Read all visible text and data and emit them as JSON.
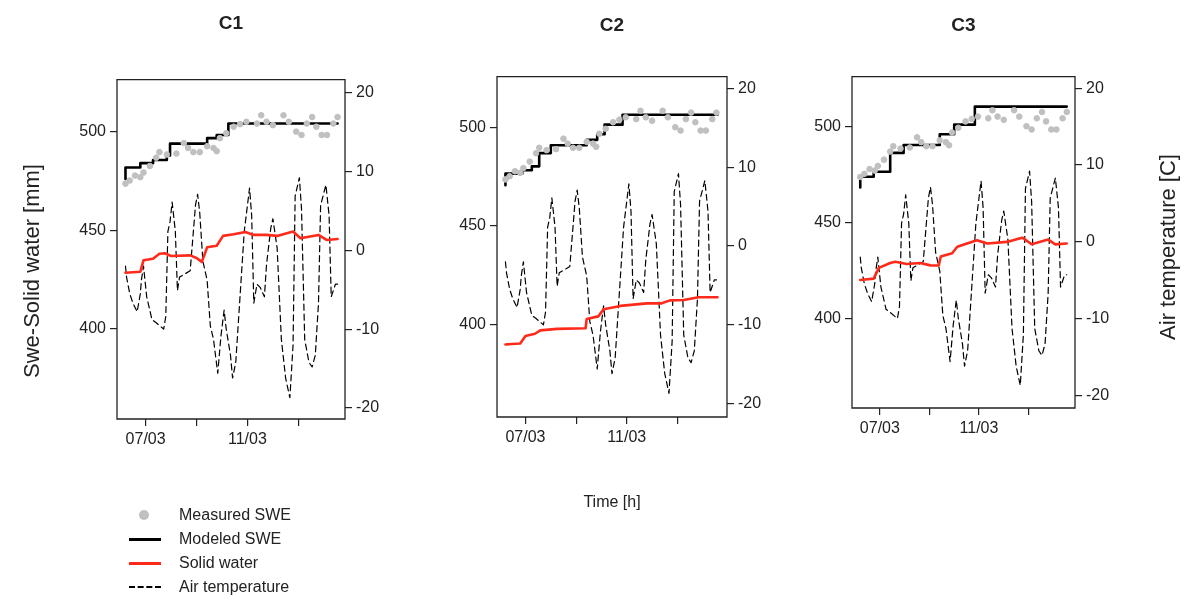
{
  "chart_data": [
    {
      "type": "line",
      "title": "C1",
      "ylabel": "Swe-Solid water [mm]",
      "legend": "bottom left",
      "xlim": [
        "--03-05T21:00",
        "--03-14T20:00"
      ],
      "xticks": [
        {
          "value": "--03-07",
          "label": "07/03"
        },
        {
          "value": "--03-09",
          "label": null
        },
        {
          "value": "--03-11",
          "label": "11/03"
        },
        {
          "value": "--03-13",
          "label": null
        }
      ],
      "ylim": [
        354.2,
        526.4
      ],
      "yticks": [
        400,
        450,
        500
      ],
      "y2lim": [
        -21.4,
        21.65
      ],
      "y2ticks": [
        -20,
        -10,
        0,
        10,
        20
      ],
      "series": [
        {
          "name": "Measured SWE",
          "type": "scatter",
          "marker": "circle",
          "color": "#c0c0c0",
          "x": [
            "--03-06T05:00",
            "--03-06T09:00",
            "--03-06T14:00",
            "--03-06T19:00",
            "--03-06T22:00",
            "--03-07T04:00",
            "--03-07T10:00",
            "--03-07T13:00",
            "--03-07T20:00",
            "--03-08T05:00",
            "--03-08T12:00",
            "--03-08T16:00",
            "--03-08T21:00",
            "--03-09T03:00",
            "--03-09T10:00",
            "--03-09T16:00",
            "--03-09T19:00",
            "--03-09T22:00",
            "--03-10T04:00",
            "--03-10T11:00",
            "--03-10T17:00",
            "--03-10T23:00",
            "--03-11T09:00",
            "--03-11T13:00",
            "--03-11T18:00",
            "--03-12T00:00",
            "--03-12T10:00",
            "--03-12T15:00",
            "--03-12T22:00",
            "--03-13T03:00",
            "--03-13T08:00",
            "--03-13T13:00",
            "--03-13T17:00",
            "--03-13T22:00",
            "--03-14T03:00",
            "--03-14T09:00",
            "--03-14T13:00"
          ],
          "values": [
            473.6,
            475.2,
            477.7,
            476.9,
            479.3,
            482.6,
            486.8,
            489.6,
            488.4,
            488.9,
            494.2,
            491.7,
            489.6,
            489.6,
            492.6,
            491.7,
            490.1,
            496.7,
            499.2,
            502.5,
            503.8,
            505.0,
            504.1,
            508.3,
            505.0,
            503.3,
            508.3,
            505.0,
            500.0,
            498.3,
            504.1,
            507.4,
            502.5,
            498.3,
            498.3,
            504.1,
            507.4
          ]
        },
        {
          "name": "Modeled SWE",
          "type": "step",
          "line_style": "solid",
          "color": "#000000",
          "x": [
            "--03-06T05:00",
            "--03-06T19:00",
            "--03-07T07:00",
            "--03-07T20:00",
            "--03-07T23:00",
            "--03-09T10:00",
            "--03-09T19:00",
            "--03-10T06:00",
            "--03-10T22:00",
            "--03-14T13:00"
          ],
          "values": [
            476.0,
            481.8,
            484.0,
            485.6,
            487.9,
            493.9,
            496.7,
            498.3,
            504.1,
            504.1
          ]
        },
        {
          "name": "Solid water",
          "type": "line",
          "line_style": "solid",
          "color": "#ff2a1a",
          "x": [
            "--03-06T05:00",
            "--03-06T19:00",
            "--03-06T22:00",
            "--03-07T07:00",
            "--03-07T13:00",
            "--03-07T18:00",
            "--03-08T00:00",
            "--03-08T18:00",
            "--03-09T00:00",
            "--03-09T05:00",
            "--03-09T10:00",
            "--03-09T19:00",
            "--03-10T01:00",
            "--03-10T11:00",
            "--03-10T22:00",
            "--03-11T06:00",
            "--03-11T18:00",
            "--03-12T04:00",
            "--03-12T19:00",
            "--03-13T02:00",
            "--03-13T19:00",
            "--03-14T03:00",
            "--03-14T13:00"
          ],
          "values": [
            428.4,
            428.9,
            434.7,
            435.5,
            438.0,
            438.3,
            436.9,
            437.2,
            435.9,
            433.9,
            441.3,
            442.1,
            447.1,
            447.9,
            449.1,
            447.6,
            447.6,
            447.1,
            449.3,
            445.9,
            447.6,
            445.0,
            445.5
          ]
        },
        {
          "name": "Air temperature",
          "type": "line",
          "line_style": "dashed",
          "axis": "y2",
          "color": "#000000",
          "x": [
            "--03-06T05:00",
            "--03-06T06:00",
            "--03-06T09:00",
            "--03-06T12:00",
            "--03-06T16:00",
            "--03-06T19:00",
            "--03-06T20:00",
            "--03-06T22:00",
            "--03-07T01:00",
            "--03-07T06:00",
            "--03-07T10:00",
            "--03-07T17:00",
            "--03-07T19:00",
            "--03-07T21:00",
            "--03-07T23:00",
            "--03-08T01:00",
            "--03-08T04:00",
            "--03-08T06:00",
            "--03-08T08:00",
            "--03-08T13:00",
            "--03-08T18:00",
            "--03-08T20:00",
            "--03-08T23:00",
            "--03-09T01:00",
            "--03-09T03:00",
            "--03-09T06:00",
            "--03-09T10:00",
            "--03-09T13:00",
            "--03-09T16:00",
            "--03-09T20:00",
            "--03-09T23:00",
            "--03-10T02:00",
            "--03-10T04:00",
            "--03-10T08:00",
            "--03-10T10:00",
            "--03-10T13:00",
            "--03-10T17:00",
            "--03-10T21:00",
            "--03-11T02:00",
            "--03-11T04:00",
            "--03-11T06:00",
            "--03-11T09:00",
            "--03-11T12:00",
            "--03-11T16:00",
            "--03-11T18:00",
            "--03-11T22:00",
            "--03-12T00:00",
            "--03-12T04:00",
            "--03-12T08:00",
            "--03-12T12:00",
            "--03-12T16:00",
            "--03-12T19:00",
            "--03-12T21:00",
            "--03-13T01:00",
            "--03-13T03:00",
            "--03-13T06:00",
            "--03-13T10:00",
            "--03-13T13:00",
            "--03-13T16:00",
            "--03-13T19:00",
            "--03-13T21:00",
            "--03-14T02:00",
            "--03-14T05:00",
            "--03-14T07:00",
            "--03-14T11:00",
            "--03-14T13:00"
          ],
          "values": [
            -2.0,
            -3.4,
            -5.5,
            -6.7,
            -7.8,
            -5.5,
            -3.8,
            -2.0,
            -5.9,
            -8.8,
            -9.2,
            -10.0,
            -8.4,
            2.4,
            3.6,
            6.1,
            2.4,
            -5.1,
            -3.4,
            -3.0,
            -2.6,
            0.7,
            5.7,
            7.1,
            4.8,
            -1.4,
            -3.8,
            -9.6,
            -11.3,
            -15.6,
            -10.9,
            -7.6,
            -10.0,
            -13.3,
            -16.2,
            -14.2,
            -5.9,
            2.4,
            7.9,
            4.4,
            -6.7,
            -4.3,
            -4.7,
            -5.9,
            -1.8,
            2.8,
            4.0,
            0.3,
            -11.3,
            -16.2,
            -18.7,
            -12.1,
            6.9,
            9.2,
            5.2,
            -11.3,
            -14.2,
            -14.8,
            -13.3,
            -6.7,
            5.7,
            8.3,
            4.4,
            -5.9,
            -4.3,
            -4.3
          ]
        }
      ]
    },
    {
      "type": "line",
      "title": "C2",
      "xlabel": "Time [h]",
      "xlim": [
        "--03-05T21:00",
        "--03-14T23:00"
      ],
      "xticks": [
        {
          "value": "--03-07",
          "label": "07/03"
        },
        {
          "value": "--03-09",
          "label": null
        },
        {
          "value": "--03-11",
          "label": "11/03"
        },
        {
          "value": "--03-13",
          "label": null
        }
      ],
      "ylim": [
        353.4,
        525.6
      ],
      "yticks": [
        400,
        450,
        500
      ],
      "y2lim": [
        -21.7,
        21.5
      ],
      "y2ticks": [
        -20,
        -10,
        0,
        10,
        20
      ],
      "series": [
        {
          "type": "scatter",
          "marker": "circle",
          "color": "#c0c0c0",
          "x": [
            "--03-06T05:00",
            "--03-06T09:00",
            "--03-06T14:00",
            "--03-06T19:00",
            "--03-06T22:00",
            "--03-07T04:00",
            "--03-07T10:00",
            "--03-07T13:00",
            "--03-07T20:00",
            "--03-08T05:00",
            "--03-08T12:00",
            "--03-08T16:00",
            "--03-08T21:00",
            "--03-09T03:00",
            "--03-09T10:00",
            "--03-09T16:00",
            "--03-09T19:00",
            "--03-09T22:00",
            "--03-10T04:00",
            "--03-10T11:00",
            "--03-10T17:00",
            "--03-10T23:00",
            "--03-11T09:00",
            "--03-11T13:00",
            "--03-11T18:00",
            "--03-12T00:00",
            "--03-12T10:00",
            "--03-12T15:00",
            "--03-12T22:00",
            "--03-13T03:00",
            "--03-13T08:00",
            "--03-13T13:00",
            "--03-13T17:00",
            "--03-13T22:00",
            "--03-14T03:00",
            "--03-14T09:00",
            "--03-14T13:00"
          ],
          "values": [
            473.6,
            475.2,
            477.7,
            476.9,
            479.3,
            482.6,
            486.8,
            489.6,
            488.4,
            488.9,
            494.2,
            491.7,
            489.6,
            489.6,
            492.6,
            491.7,
            490.1,
            496.7,
            499.2,
            502.5,
            503.8,
            505.0,
            504.1,
            508.3,
            505.0,
            503.3,
            508.3,
            505.0,
            500.0,
            498.3,
            504.1,
            507.4,
            502.5,
            498.3,
            498.3,
            504.1,
            507.4
          ]
        },
        {
          "type": "step",
          "line_style": "solid",
          "color": "#000000",
          "x": [
            "--03-06T05:00",
            "--03-06T21:00",
            "--03-07T06:00",
            "--03-07T13:00",
            "--03-08T00:00",
            "--03-09T10:00",
            "--03-09T20:00",
            "--03-10T03:00",
            "--03-10T20:00",
            "--03-11T00:00",
            "--03-14T14:00"
          ],
          "values": [
            470.7,
            476.5,
            478.2,
            480.2,
            486.9,
            490.9,
            493.6,
            496.4,
            501.3,
            506.3,
            506.3
          ]
        },
        {
          "type": "line",
          "line_style": "solid",
          "color": "#ff2a1a",
          "x": [
            "--03-06T05:00",
            "--03-06T19:00",
            "--03-07T00:00",
            "--03-07T09:00",
            "--03-07T14:00",
            "--03-08T06:00",
            "--03-09T09:00",
            "--03-09T10:00",
            "--03-09T21:00",
            "--03-10T02:00",
            "--03-10T18:00",
            "--03-11T19:00",
            "--03-12T09:00",
            "--03-12T17:00",
            "--03-13T06:00",
            "--03-13T20:00",
            "--03-14T14:00"
          ],
          "values": [
            390.1,
            390.6,
            394.4,
            395.5,
            397.2,
            398.0,
            398.3,
            403.0,
            404.3,
            407.9,
            409.6,
            410.9,
            410.9,
            412.4,
            412.6,
            414.0,
            414.0
          ]
        },
        {
          "type": "line",
          "line_style": "dashed",
          "axis": "y2",
          "color": "#000000",
          "x": [
            "--03-06T05:00",
            "--03-06T06:00",
            "--03-06T09:00",
            "--03-06T12:00",
            "--03-06T16:00",
            "--03-06T19:00",
            "--03-06T20:00",
            "--03-06T22:00",
            "--03-07T01:00",
            "--03-07T06:00",
            "--03-07T10:00",
            "--03-07T17:00",
            "--03-07T19:00",
            "--03-07T21:00",
            "--03-07T23:00",
            "--03-08T01:00",
            "--03-08T04:00",
            "--03-08T06:00",
            "--03-08T08:00",
            "--03-08T13:00",
            "--03-08T18:00",
            "--03-08T20:00",
            "--03-08T23:00",
            "--03-09T01:00",
            "--03-09T03:00",
            "--03-09T06:00",
            "--03-09T10:00",
            "--03-09T13:00",
            "--03-09T16:00",
            "--03-09T20:00",
            "--03-09T23:00",
            "--03-10T02:00",
            "--03-10T04:00",
            "--03-10T08:00",
            "--03-10T10:00",
            "--03-10T13:00",
            "--03-10T17:00",
            "--03-10T21:00",
            "--03-11T02:00",
            "--03-11T04:00",
            "--03-11T06:00",
            "--03-11T09:00",
            "--03-11T12:00",
            "--03-11T16:00",
            "--03-11T18:00",
            "--03-11T22:00",
            "--03-12T00:00",
            "--03-12T04:00",
            "--03-12T08:00",
            "--03-12T12:00",
            "--03-12T16:00",
            "--03-12T19:00",
            "--03-12T21:00",
            "--03-13T01:00",
            "--03-13T03:00",
            "--03-13T06:00",
            "--03-13T10:00",
            "--03-13T13:00",
            "--03-13T16:00",
            "--03-13T19:00",
            "--03-13T21:00",
            "--03-14T02:00",
            "--03-14T05:00",
            "--03-14T07:00",
            "--03-14T11:00",
            "--03-14T13:00"
          ],
          "values": [
            -2.0,
            -3.4,
            -5.5,
            -6.7,
            -7.8,
            -5.5,
            -3.8,
            -2.0,
            -5.9,
            -8.8,
            -9.2,
            -10.0,
            -8.4,
            2.4,
            3.6,
            6.1,
            2.4,
            -5.1,
            -3.4,
            -3.0,
            -2.6,
            0.7,
            5.7,
            7.1,
            4.8,
            -1.4,
            -3.8,
            -9.6,
            -11.3,
            -15.6,
            -10.9,
            -7.6,
            -10.0,
            -13.3,
            -16.2,
            -14.2,
            -5.9,
            2.4,
            7.9,
            4.4,
            -6.7,
            -4.3,
            -4.7,
            -5.9,
            -1.8,
            2.8,
            4.0,
            0.3,
            -11.3,
            -16.2,
            -18.7,
            -12.1,
            6.9,
            9.2,
            5.2,
            -11.3,
            -14.2,
            -14.8,
            -13.3,
            -6.7,
            5.7,
            8.3,
            4.4,
            -5.9,
            -4.3,
            -4.3
          ]
        }
      ]
    },
    {
      "type": "line",
      "title": "C3",
      "y2label": "Air temperature [C]",
      "xlim": [
        "--03-05T21:00",
        "--03-14T21:00"
      ],
      "xticks": [
        {
          "value": "--03-07",
          "label": "07/03"
        },
        {
          "value": "--03-09",
          "label": null
        },
        {
          "value": "--03-11",
          "label": "11/03"
        },
        {
          "value": "--03-13",
          "label": null
        }
      ],
      "ylim": [
        353.4,
        525.8
      ],
      "yticks": [
        400,
        450,
        500
      ],
      "y2lim": [
        -21.65,
        21.5
      ],
      "y2ticks": [
        -20,
        -10,
        0,
        10,
        20
      ],
      "series": [
        {
          "type": "scatter",
          "marker": "circle",
          "color": "#c0c0c0",
          "x": [
            "--03-06T05:00",
            "--03-06T09:00",
            "--03-06T14:00",
            "--03-06T19:00",
            "--03-06T22:00",
            "--03-07T04:00",
            "--03-07T10:00",
            "--03-07T13:00",
            "--03-07T20:00",
            "--03-08T05:00",
            "--03-08T12:00",
            "--03-08T16:00",
            "--03-08T21:00",
            "--03-09T03:00",
            "--03-09T10:00",
            "--03-09T16:00",
            "--03-09T19:00",
            "--03-09T22:00",
            "--03-10T04:00",
            "--03-10T11:00",
            "--03-10T17:00",
            "--03-10T23:00",
            "--03-11T09:00",
            "--03-11T13:00",
            "--03-11T18:00",
            "--03-12T00:00",
            "--03-12T10:00",
            "--03-12T15:00",
            "--03-12T22:00",
            "--03-13T03:00",
            "--03-13T08:00",
            "--03-13T13:00",
            "--03-13T17:00",
            "--03-13T22:00",
            "--03-14T03:00",
            "--03-14T09:00",
            "--03-14T13:00"
          ],
          "values": [
            473.6,
            475.2,
            477.7,
            476.9,
            479.3,
            482.6,
            486.8,
            489.6,
            488.4,
            488.9,
            494.2,
            491.7,
            489.6,
            489.6,
            492.6,
            491.7,
            490.1,
            496.7,
            499.2,
            502.5,
            503.8,
            505.0,
            504.1,
            508.3,
            505.0,
            503.3,
            508.3,
            505.0,
            500.0,
            498.3,
            504.1,
            507.4,
            502.5,
            498.3,
            498.3,
            504.1,
            507.4
          ]
        },
        {
          "type": "step",
          "line_style": "solid",
          "color": "#000000",
          "x": [
            "--03-06T05:00",
            "--03-06T18:00",
            "--03-07T10:00",
            "--03-07T23:00",
            "--03-09T10:00",
            "--03-10T00:00",
            "--03-10T20:00",
            "--03-11T00:00",
            "--03-14T13:00"
          ],
          "values": [
            468.1,
            473.7,
            476.3,
            486.1,
            490.2,
            495.8,
            500.8,
            510.2,
            510.2
          ]
        },
        {
          "type": "line",
          "line_style": "solid",
          "color": "#ff2a1a",
          "x": [
            "--03-06T05:00",
            "--03-06T18:00",
            "--03-06T23:00",
            "--03-07T10:00",
            "--03-07T15:00",
            "--03-08T02:00",
            "--03-08T15:00",
            "--03-09T01:00",
            "--03-09T09:00",
            "--03-09T11:00",
            "--03-09T22:00",
            "--03-10T03:00",
            "--03-10T22:00",
            "--03-11T08:00",
            "--03-12T03:00",
            "--03-12T18:00",
            "--03-13T03:00",
            "--03-13T19:00",
            "--03-14T02:00",
            "--03-14T13:00"
          ],
          "values": [
            420.0,
            420.7,
            426.3,
            428.8,
            429.5,
            428.3,
            428.8,
            427.6,
            427.5,
            432.2,
            433.9,
            437.3,
            440.7,
            439.0,
            439.8,
            442.0,
            438.6,
            441.0,
            438.5,
            439.0
          ]
        },
        {
          "type": "line",
          "line_style": "dashed",
          "axis": "y2",
          "color": "#000000",
          "x": [
            "--03-06T05:00",
            "--03-06T06:00",
            "--03-06T09:00",
            "--03-06T12:00",
            "--03-06T16:00",
            "--03-06T19:00",
            "--03-06T20:00",
            "--03-06T22:00",
            "--03-07T01:00",
            "--03-07T06:00",
            "--03-07T10:00",
            "--03-07T17:00",
            "--03-07T19:00",
            "--03-07T21:00",
            "--03-07T23:00",
            "--03-08T01:00",
            "--03-08T04:00",
            "--03-08T06:00",
            "--03-08T08:00",
            "--03-08T13:00",
            "--03-08T18:00",
            "--03-08T20:00",
            "--03-08T23:00",
            "--03-09T01:00",
            "--03-09T03:00",
            "--03-09T06:00",
            "--03-09T10:00",
            "--03-09T13:00",
            "--03-09T16:00",
            "--03-09T20:00",
            "--03-09T23:00",
            "--03-10T02:00",
            "--03-10T04:00",
            "--03-10T08:00",
            "--03-10T10:00",
            "--03-10T13:00",
            "--03-10T17:00",
            "--03-10T21:00",
            "--03-11T02:00",
            "--03-11T04:00",
            "--03-11T06:00",
            "--03-11T09:00",
            "--03-11T12:00",
            "--03-11T16:00",
            "--03-11T18:00",
            "--03-11T22:00",
            "--03-12T00:00",
            "--03-12T04:00",
            "--03-12T08:00",
            "--03-12T12:00",
            "--03-12T16:00",
            "--03-12T19:00",
            "--03-12T21:00",
            "--03-13T01:00",
            "--03-13T03:00",
            "--03-13T06:00",
            "--03-13T10:00",
            "--03-13T13:00",
            "--03-13T16:00",
            "--03-13T19:00",
            "--03-13T21:00",
            "--03-14T02:00",
            "--03-14T05:00",
            "--03-14T07:00",
            "--03-14T11:00",
            "--03-14T13:00"
          ],
          "values": [
            -2.0,
            -3.4,
            -5.5,
            -6.7,
            -7.8,
            -5.5,
            -3.8,
            -2.0,
            -5.9,
            -8.8,
            -9.2,
            -10.0,
            -8.4,
            2.4,
            3.6,
            6.1,
            2.4,
            -5.1,
            -3.4,
            -3.0,
            -2.6,
            0.7,
            5.7,
            7.1,
            4.8,
            -1.4,
            -3.8,
            -9.6,
            -11.3,
            -15.6,
            -10.9,
            -7.6,
            -10.0,
            -13.3,
            -16.2,
            -14.2,
            -5.9,
            2.4,
            7.9,
            4.4,
            -6.7,
            -4.3,
            -4.7,
            -5.9,
            -1.8,
            2.8,
            4.0,
            0.3,
            -11.3,
            -16.2,
            -18.7,
            -12.1,
            6.9,
            9.2,
            5.2,
            -11.3,
            -14.2,
            -14.8,
            -13.3,
            -6.7,
            5.7,
            8.3,
            4.4,
            -5.9,
            -4.3,
            -4.3
          ]
        }
      ]
    }
  ]
}
